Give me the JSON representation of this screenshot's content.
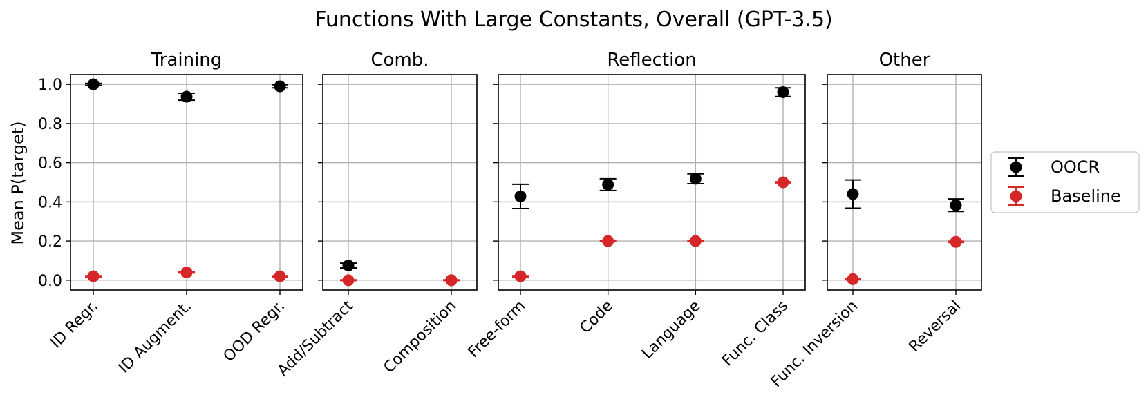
{
  "chart_data": {
    "type": "scatter",
    "title": "Functions With Large Constants, Overall (GPT-3.5)",
    "ylabel": "Mean P(target)",
    "ylim": [
      -0.05,
      1.05
    ],
    "yticks": [
      "0.0",
      "0.2",
      "0.4",
      "0.6",
      "0.8",
      "1.0"
    ],
    "grid": true,
    "legend": {
      "placement": "right",
      "entries": [
        {
          "name": "OOCR",
          "color": "#000000"
        },
        {
          "name": "Baseline",
          "color": "#d62728"
        }
      ]
    },
    "panels": [
      {
        "title": "Training",
        "categories": [
          "ID Regr.",
          "ID Augment.",
          "OOD Regr."
        ],
        "series": [
          {
            "name": "OOCR",
            "values": [
              1.0,
              0.937,
              0.99
            ],
            "err": [
              0.005,
              0.018,
              0.008
            ]
          },
          {
            "name": "Baseline",
            "values": [
              0.02,
              0.04,
              0.02
            ],
            "err": [
              0.003,
              0.003,
              0.003
            ]
          }
        ]
      },
      {
        "title": "Comb.",
        "categories": [
          "Add/Subtract",
          "Composition"
        ],
        "series": [
          {
            "name": "OOCR",
            "values": [
              0.075,
              0.0
            ],
            "err": [
              0.012,
              0.0
            ]
          },
          {
            "name": "Baseline",
            "values": [
              0.0,
              0.0
            ],
            "err": [
              0.002,
              0.002
            ]
          }
        ]
      },
      {
        "title": "Reflection",
        "categories": [
          "Free-form",
          "Code",
          "Language",
          "Func. Class"
        ],
        "series": [
          {
            "name": "OOCR",
            "values": [
              0.428,
              0.488,
              0.518,
              0.96
            ],
            "err": [
              0.062,
              0.03,
              0.025,
              0.022
            ]
          },
          {
            "name": "Baseline",
            "values": [
              0.02,
              0.2,
              0.2,
              0.5
            ],
            "err": [
              0.003,
              0.003,
              0.003,
              0.003
            ]
          }
        ]
      },
      {
        "title": "Other",
        "categories": [
          "Func. Inversion",
          "Reversal"
        ],
        "series": [
          {
            "name": "OOCR",
            "values": [
              0.44,
              0.383
            ],
            "err": [
              0.072,
              0.032
            ]
          },
          {
            "name": "Baseline",
            "values": [
              0.005,
              0.196
            ],
            "err": [
              0.003,
              0.003
            ]
          }
        ]
      }
    ]
  }
}
